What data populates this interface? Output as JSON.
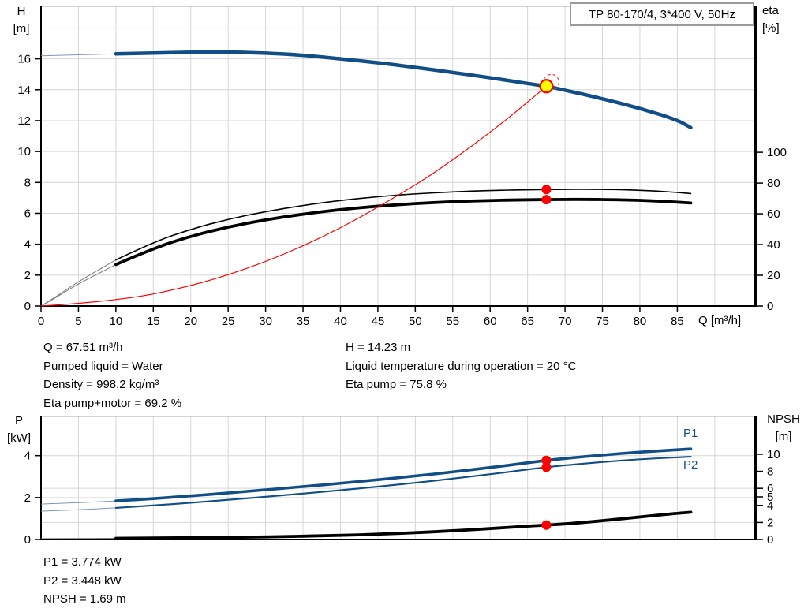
{
  "title_box": {
    "label": "TP 80-170/4, 3*400 V, 50Hz"
  },
  "colors": {
    "curve_blue": "#114E87",
    "curve_blue_thin": "#7E97B5",
    "curve_black": "#000000",
    "curve_black_thin": "#777777",
    "red": "#FF0000",
    "red_light": "#FF4D4D",
    "yellow": "#FFFF00",
    "grid": "#D6D6D6",
    "border_top": "#AAAAAA",
    "axis": "#000000",
    "box_border": "#9A9A9A"
  },
  "info_top": {
    "left": [
      "Q = 67.51 m³/h",
      "Pumped liquid = Water",
      "Density = 998.2 kg/m³",
      "Eta pump+motor = 69.2 %"
    ],
    "right": [
      "H = 14.23 m",
      "Liquid temperature during operation = 20 °C",
      "Eta pump = 75.8 %"
    ]
  },
  "info_bottom": [
    "P1 = 3.774 kW",
    "P2 = 3.448 kW",
    "NPSH = 1.69 m"
  ],
  "chart_data": [
    {
      "type": "line",
      "name": "qh-eta-chart",
      "x_axis": {
        "label": "Q [m³/h]",
        "range": [
          0,
          95.5
        ],
        "ticks": [
          0,
          5,
          10,
          15,
          20,
          25,
          30,
          35,
          40,
          45,
          50,
          55,
          60,
          65,
          70,
          75,
          80,
          85
        ],
        "grid": [
          5,
          10,
          15,
          20,
          25,
          30,
          35,
          40,
          45,
          50,
          55,
          60,
          65,
          70,
          75,
          80,
          85,
          90
        ]
      },
      "y_left": {
        "label": "H",
        "unit": "[m]",
        "range": [
          0,
          19.4
        ],
        "ticks": [
          0,
          2,
          4,
          6,
          8,
          10,
          12,
          14,
          16
        ],
        "grid": [
          2,
          4,
          6,
          8,
          10,
          12,
          14,
          16,
          18
        ]
      },
      "y_right": {
        "label": "eta",
        "unit": "[%]",
        "range": [
          0,
          195
        ],
        "ticks": [
          0,
          20,
          40,
          60,
          80,
          100
        ],
        "grid": []
      },
      "series": [
        {
          "name": "head-curve",
          "axis": "left",
          "color_key": "curve_blue",
          "thin_color_key": "curve_blue_thin",
          "width": 4.5,
          "thin_until": 6,
          "points": [
            [
              0,
              16.2
            ],
            [
              5,
              16.26
            ],
            [
              10,
              16.32
            ],
            [
              15,
              16.38
            ],
            [
              20,
              16.43
            ],
            [
              23,
              16.45
            ],
            [
              25,
              16.44
            ],
            [
              30,
              16.38
            ],
            [
              35,
              16.24
            ],
            [
              40,
              16.0
            ],
            [
              45,
              15.75
            ],
            [
              50,
              15.45
            ],
            [
              55,
              15.12
            ],
            [
              60,
              14.78
            ],
            [
              65,
              14.4
            ],
            [
              67.51,
              14.23
            ],
            [
              70,
              13.97
            ],
            [
              75,
              13.42
            ],
            [
              80,
              12.8
            ],
            [
              85,
              12.05
            ],
            [
              86.8,
              11.55
            ]
          ]
        },
        {
          "name": "eta-pump-curve",
          "axis": "right",
          "color_key": "curve_black",
          "thin_color_key": "curve_black_thin",
          "width": 1.6,
          "thin_until": 6.5,
          "points": [
            [
              0,
              0
            ],
            [
              2,
              6
            ],
            [
              5,
              16
            ],
            [
              10,
              30
            ],
            [
              15,
              41.5
            ],
            [
              20,
              50
            ],
            [
              25,
              56.5
            ],
            [
              30,
              61.5
            ],
            [
              35,
              65.5
            ],
            [
              40,
              68.7
            ],
            [
              45,
              71.2
            ],
            [
              50,
              73
            ],
            [
              55,
              74.3
            ],
            [
              60,
              75.2
            ],
            [
              65,
              75.7
            ],
            [
              67.51,
              75.8
            ],
            [
              70,
              75.9
            ],
            [
              73,
              76
            ],
            [
              78,
              75.7
            ],
            [
              82,
              74.9
            ],
            [
              85,
              73.9
            ],
            [
              86.8,
              73.2
            ]
          ]
        },
        {
          "name": "eta-pump-motor-curve",
          "axis": "right",
          "color_key": "curve_black",
          "thin_color_key": "curve_black_thin",
          "width": 3.8,
          "thin_until": 6.5,
          "points": [
            [
              0,
              0
            ],
            [
              2,
              5.5
            ],
            [
              5,
              14.5
            ],
            [
              10,
              27
            ],
            [
              15,
              37.5
            ],
            [
              20,
              45.5
            ],
            [
              25,
              51.5
            ],
            [
              30,
              56.2
            ],
            [
              35,
              59.8
            ],
            [
              40,
              62.8
            ],
            [
              45,
              65
            ],
            [
              50,
              66.7
            ],
            [
              55,
              67.9
            ],
            [
              60,
              68.7
            ],
            [
              65,
              69.1
            ],
            [
              67.51,
              69.2
            ],
            [
              70,
              69.35
            ],
            [
              73,
              69.4
            ],
            [
              78,
              69.1
            ],
            [
              82,
              68.4
            ],
            [
              85,
              67.6
            ],
            [
              86.8,
              67.0
            ]
          ]
        },
        {
          "name": "system-curve",
          "axis": "left",
          "color_key": "red",
          "width": 1.2,
          "points": [
            [
              0,
              0
            ],
            [
              10,
              0.31
            ],
            [
              20,
              1.25
            ],
            [
              30,
              2.81
            ],
            [
              40,
              4.99
            ],
            [
              50,
              7.81
            ],
            [
              55,
              9.45
            ],
            [
              60,
              11.24
            ],
            [
              64,
              12.79
            ],
            [
              67.51,
              14.23
            ]
          ]
        }
      ],
      "markers": [
        {
          "name": "duty-point-ghost",
          "axis": "left",
          "x": 67.51,
          "y": 14.23,
          "dx": 6,
          "dy": -5,
          "r": 10,
          "stroke_key": "red_light",
          "stroke_width": 1.3,
          "dashed": true
        },
        {
          "name": "duty-point",
          "axis": "left",
          "x": 67.51,
          "y": 14.23,
          "r": 8,
          "fill_key": "yellow",
          "stroke_key": "red",
          "stroke_width": 2.2,
          "interactable": true
        },
        {
          "name": "eta-pump-dot",
          "axis": "right",
          "x": 67.51,
          "y": 75.8,
          "r": 6,
          "fill_key": "red"
        },
        {
          "name": "eta-pump-motor-dot",
          "axis": "right",
          "x": 67.51,
          "y": 69.2,
          "r": 6,
          "fill_key": "red"
        }
      ]
    },
    {
      "type": "line",
      "name": "power-npsh-chart",
      "x_axis": {
        "label": "",
        "range": [
          0,
          95.5
        ],
        "ticks": [],
        "grid": [
          5,
          10,
          15,
          20,
          25,
          30,
          35,
          40,
          45,
          50,
          55,
          60,
          65,
          70,
          75,
          80,
          85,
          90
        ]
      },
      "y_left": {
        "label": "P",
        "unit": "[kW]",
        "range": [
          0,
          5.87
        ],
        "ticks": [
          0,
          2,
          4
        ],
        "grid": [
          2,
          4
        ]
      },
      "y_right": {
        "label": "NPSH",
        "unit": "[m]",
        "range": [
          0,
          14.44
        ],
        "ticks": [
          0,
          2,
          4,
          5,
          6,
          8,
          10
        ],
        "grid": [
          2,
          6
        ]
      },
      "series": [
        {
          "name": "p1-curve",
          "axis": "left",
          "color_key": "curve_blue",
          "thin_color_key": "curve_blue_thin",
          "width": 3.6,
          "thin_until": 6,
          "points": [
            [
              0,
              1.69
            ],
            [
              5,
              1.75
            ],
            [
              10,
              1.84
            ],
            [
              15,
              1.95
            ],
            [
              20,
              2.08
            ],
            [
              25,
              2.22
            ],
            [
              30,
              2.37
            ],
            [
              35,
              2.52
            ],
            [
              40,
              2.68
            ],
            [
              45,
              2.85
            ],
            [
              50,
              3.03
            ],
            [
              55,
              3.22
            ],
            [
              60,
              3.43
            ],
            [
              65,
              3.66
            ],
            [
              67.51,
              3.774
            ],
            [
              70,
              3.87
            ],
            [
              75,
              4.03
            ],
            [
              80,
              4.17
            ],
            [
              85,
              4.28
            ],
            [
              86.8,
              4.32
            ]
          ]
        },
        {
          "name": "p2-curve",
          "axis": "left",
          "color_key": "curve_blue",
          "thin_color_key": "curve_blue_thin",
          "width": 2.1,
          "thin_until": 6,
          "points": [
            [
              0,
              1.35
            ],
            [
              5,
              1.42
            ],
            [
              10,
              1.51
            ],
            [
              15,
              1.62
            ],
            [
              20,
              1.75
            ],
            [
              25,
              1.89
            ],
            [
              30,
              2.04
            ],
            [
              35,
              2.19
            ],
            [
              40,
              2.35
            ],
            [
              45,
              2.52
            ],
            [
              50,
              2.7
            ],
            [
              55,
              2.9
            ],
            [
              60,
              3.11
            ],
            [
              65,
              3.34
            ],
            [
              67.51,
              3.448
            ],
            [
              70,
              3.54
            ],
            [
              75,
              3.7
            ],
            [
              80,
              3.83
            ],
            [
              85,
              3.92
            ],
            [
              86.8,
              3.95
            ]
          ]
        },
        {
          "name": "npsh-curve",
          "axis": "right",
          "color_key": "curve_black",
          "thin_color_key": "curve_black_thin",
          "width": 3.8,
          "thin_until": 6,
          "points": [
            [
              0,
              0.1
            ],
            [
              10,
              0.14
            ],
            [
              20,
              0.2
            ],
            [
              30,
              0.3
            ],
            [
              40,
              0.48
            ],
            [
              45,
              0.62
            ],
            [
              50,
              0.8
            ],
            [
              55,
              1.02
            ],
            [
              60,
              1.28
            ],
            [
              65,
              1.57
            ],
            [
              67.51,
              1.69
            ],
            [
              70,
              1.82
            ],
            [
              75,
              2.2
            ],
            [
              80,
              2.65
            ],
            [
              85,
              3.08
            ],
            [
              86.8,
              3.2
            ]
          ]
        }
      ],
      "markers": [
        {
          "name": "p1-dot",
          "axis": "left",
          "x": 67.51,
          "y": 3.774,
          "r": 6,
          "fill_key": "red"
        },
        {
          "name": "p2-dot",
          "axis": "left",
          "x": 67.51,
          "y": 3.448,
          "r": 6,
          "fill_key": "red"
        },
        {
          "name": "npsh-dot",
          "axis": "right",
          "x": 67.51,
          "y": 1.69,
          "r": 6,
          "fill_key": "red"
        }
      ],
      "series_labels": [
        {
          "name": "p1-curve-label",
          "text": "P1"
        },
        {
          "name": "p2-curve-label",
          "text": "P2"
        }
      ]
    }
  ]
}
